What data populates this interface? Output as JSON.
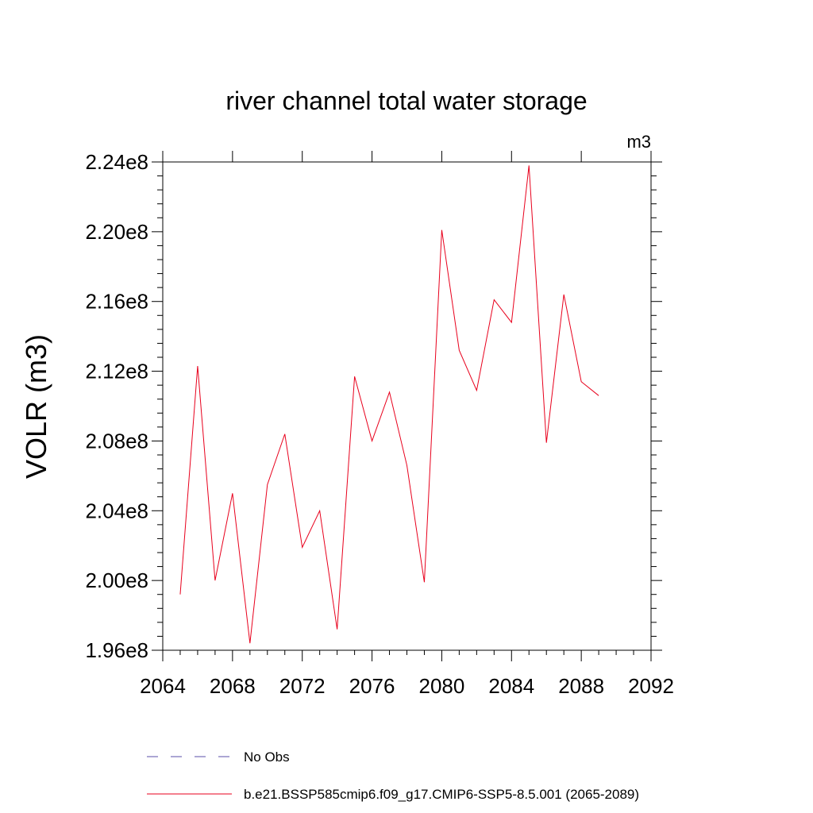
{
  "chart_data": {
    "type": "line",
    "title": "river channel total water storage",
    "units_label": "m3",
    "xlabel": "",
    "ylabel": "VOLR  (m3)",
    "xlim": [
      2064,
      2092
    ],
    "ylim": [
      196000000.0,
      224000000.0
    ],
    "x_ticks": [
      2064,
      2068,
      2072,
      2076,
      2080,
      2084,
      2088,
      2092
    ],
    "x_tick_labels": [
      "2064",
      "2068",
      "2072",
      "2076",
      "2080",
      "2084",
      "2088",
      "2092"
    ],
    "y_ticks": [
      196000000.0,
      200000000.0,
      204000000.0,
      208000000.0,
      212000000.0,
      216000000.0,
      220000000.0,
      224000000.0
    ],
    "y_tick_labels": [
      "1.96e8",
      "2.00e8",
      "2.04e8",
      "2.08e8",
      "2.12e8",
      "2.16e8",
      "2.20e8",
      "2.24e8"
    ],
    "grid": false,
    "series": [
      {
        "name": "b.e21.BSSP585cmip6.f09_g17.CMIP6-SSP5-8.5.001 (2065-2089)",
        "color": "#e8001c",
        "x": [
          2065,
          2066,
          2067,
          2068,
          2069,
          2070,
          2071,
          2072,
          2073,
          2074,
          2075,
          2076,
          2077,
          2078,
          2079,
          2080,
          2081,
          2082,
          2083,
          2084,
          2085,
          2086,
          2087,
          2088,
          2089
        ],
        "values": [
          199200000.0,
          212300000.0,
          200000000.0,
          205000000.0,
          196400000.0,
          205500000.0,
          208400000.0,
          201900000.0,
          204000000.0,
          197200000.0,
          211700000.0,
          208000000.0,
          210800000.0,
          206600000.0,
          199900000.0,
          220100000.0,
          213200000.0,
          210900000.0,
          216100000.0,
          214800000.0,
          223800000.0,
          207900000.0,
          216400000.0,
          211400000.0,
          210600000.0
        ]
      }
    ],
    "legend": [
      {
        "label": "No Obs",
        "style": "dashed",
        "color": "#5a4fa8"
      },
      {
        "label": "b.e21.BSSP585cmip6.f09_g17.CMIP6-SSP5-8.5.001 (2065-2089)",
        "style": "solid",
        "color": "#e8001c"
      }
    ]
  }
}
